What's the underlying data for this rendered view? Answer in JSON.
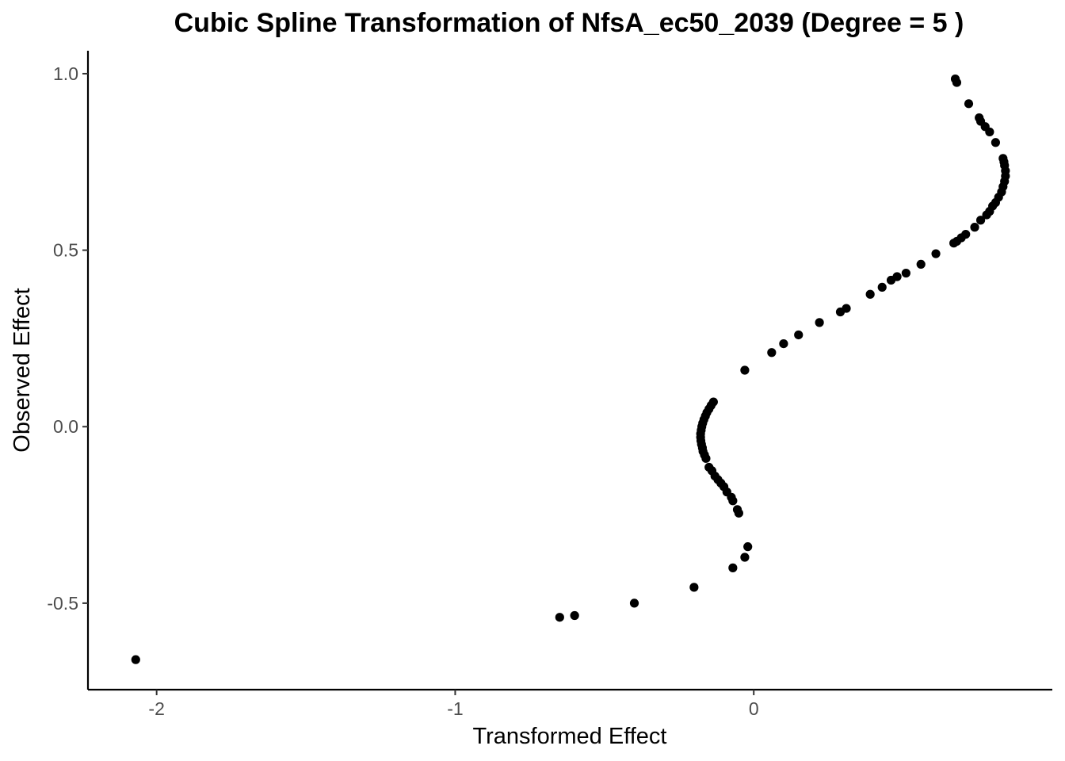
{
  "chart_data": {
    "type": "scatter",
    "title": "Cubic Spline Transformation of NfsA_ec50_2039 (Degree = 5 )",
    "xlabel": "Transformed Effect",
    "ylabel": "Observed Effect",
    "xlim": [
      -2.23,
      1.0
    ],
    "ylim": [
      -0.745,
      1.065
    ],
    "xticks": [
      -2,
      -1,
      0
    ],
    "xtick_labels": [
      "-2",
      "-1",
      "0"
    ],
    "yticks": [
      -0.5,
      0.0,
      0.5,
      1.0
    ],
    "ytick_labels": [
      "-0.5",
      "0.0",
      "0.5",
      "1.0"
    ],
    "grid": false,
    "legend": "none",
    "point_color": "#000000",
    "points": [
      {
        "x": -2.07,
        "y": -0.66
      },
      {
        "x": -0.65,
        "y": -0.54
      },
      {
        "x": -0.6,
        "y": -0.535
      },
      {
        "x": -0.4,
        "y": -0.5
      },
      {
        "x": -0.2,
        "y": -0.455
      },
      {
        "x": -0.07,
        "y": -0.4
      },
      {
        "x": -0.03,
        "y": -0.37
      },
      {
        "x": -0.02,
        "y": -0.34
      },
      {
        "x": -0.05,
        "y": -0.245
      },
      {
        "x": -0.055,
        "y": -0.235
      },
      {
        "x": -0.07,
        "y": -0.21
      },
      {
        "x": -0.075,
        "y": -0.2
      },
      {
        "x": -0.09,
        "y": -0.185
      },
      {
        "x": -0.1,
        "y": -0.17
      },
      {
        "x": -0.11,
        "y": -0.16
      },
      {
        "x": -0.12,
        "y": -0.15
      },
      {
        "x": -0.13,
        "y": -0.14
      },
      {
        "x": -0.14,
        "y": -0.125
      },
      {
        "x": -0.15,
        "y": -0.115
      },
      {
        "x": -0.16,
        "y": -0.09
      },
      {
        "x": -0.165,
        "y": -0.08
      },
      {
        "x": -0.17,
        "y": -0.07
      },
      {
        "x": -0.172,
        "y": -0.06
      },
      {
        "x": -0.175,
        "y": -0.05
      },
      {
        "x": -0.177,
        "y": -0.04
      },
      {
        "x": -0.178,
        "y": -0.03
      },
      {
        "x": -0.178,
        "y": -0.02
      },
      {
        "x": -0.176,
        "y": -0.01
      },
      {
        "x": -0.174,
        "y": 0.0
      },
      {
        "x": -0.171,
        "y": 0.01
      },
      {
        "x": -0.167,
        "y": 0.02
      },
      {
        "x": -0.162,
        "y": 0.03
      },
      {
        "x": -0.157,
        "y": 0.04
      },
      {
        "x": -0.15,
        "y": 0.05
      },
      {
        "x": -0.143,
        "y": 0.06
      },
      {
        "x": -0.135,
        "y": 0.07
      },
      {
        "x": -0.03,
        "y": 0.16
      },
      {
        "x": 0.06,
        "y": 0.21
      },
      {
        "x": 0.1,
        "y": 0.235
      },
      {
        "x": 0.15,
        "y": 0.26
      },
      {
        "x": 0.22,
        "y": 0.295
      },
      {
        "x": 0.29,
        "y": 0.325
      },
      {
        "x": 0.31,
        "y": 0.335
      },
      {
        "x": 0.39,
        "y": 0.375
      },
      {
        "x": 0.43,
        "y": 0.395
      },
      {
        "x": 0.46,
        "y": 0.415
      },
      {
        "x": 0.48,
        "y": 0.425
      },
      {
        "x": 0.51,
        "y": 0.435
      },
      {
        "x": 0.56,
        "y": 0.46
      },
      {
        "x": 0.61,
        "y": 0.49
      },
      {
        "x": 0.67,
        "y": 0.52
      },
      {
        "x": 0.68,
        "y": 0.525
      },
      {
        "x": 0.695,
        "y": 0.535
      },
      {
        "x": 0.71,
        "y": 0.545
      },
      {
        "x": 0.74,
        "y": 0.565
      },
      {
        "x": 0.76,
        "y": 0.585
      },
      {
        "x": 0.78,
        "y": 0.6
      },
      {
        "x": 0.79,
        "y": 0.61
      },
      {
        "x": 0.8,
        "y": 0.625
      },
      {
        "x": 0.81,
        "y": 0.635
      },
      {
        "x": 0.82,
        "y": 0.65
      },
      {
        "x": 0.83,
        "y": 0.665
      },
      {
        "x": 0.835,
        "y": 0.68
      },
      {
        "x": 0.84,
        "y": 0.695
      },
      {
        "x": 0.843,
        "y": 0.71
      },
      {
        "x": 0.843,
        "y": 0.725
      },
      {
        "x": 0.84,
        "y": 0.74
      },
      {
        "x": 0.838,
        "y": 0.75
      },
      {
        "x": 0.835,
        "y": 0.76
      },
      {
        "x": 0.81,
        "y": 0.805
      },
      {
        "x": 0.79,
        "y": 0.835
      },
      {
        "x": 0.775,
        "y": 0.85
      },
      {
        "x": 0.76,
        "y": 0.865
      },
      {
        "x": 0.755,
        "y": 0.875
      },
      {
        "x": 0.72,
        "y": 0.915
      },
      {
        "x": 0.68,
        "y": 0.975
      },
      {
        "x": 0.675,
        "y": 0.985
      }
    ]
  }
}
